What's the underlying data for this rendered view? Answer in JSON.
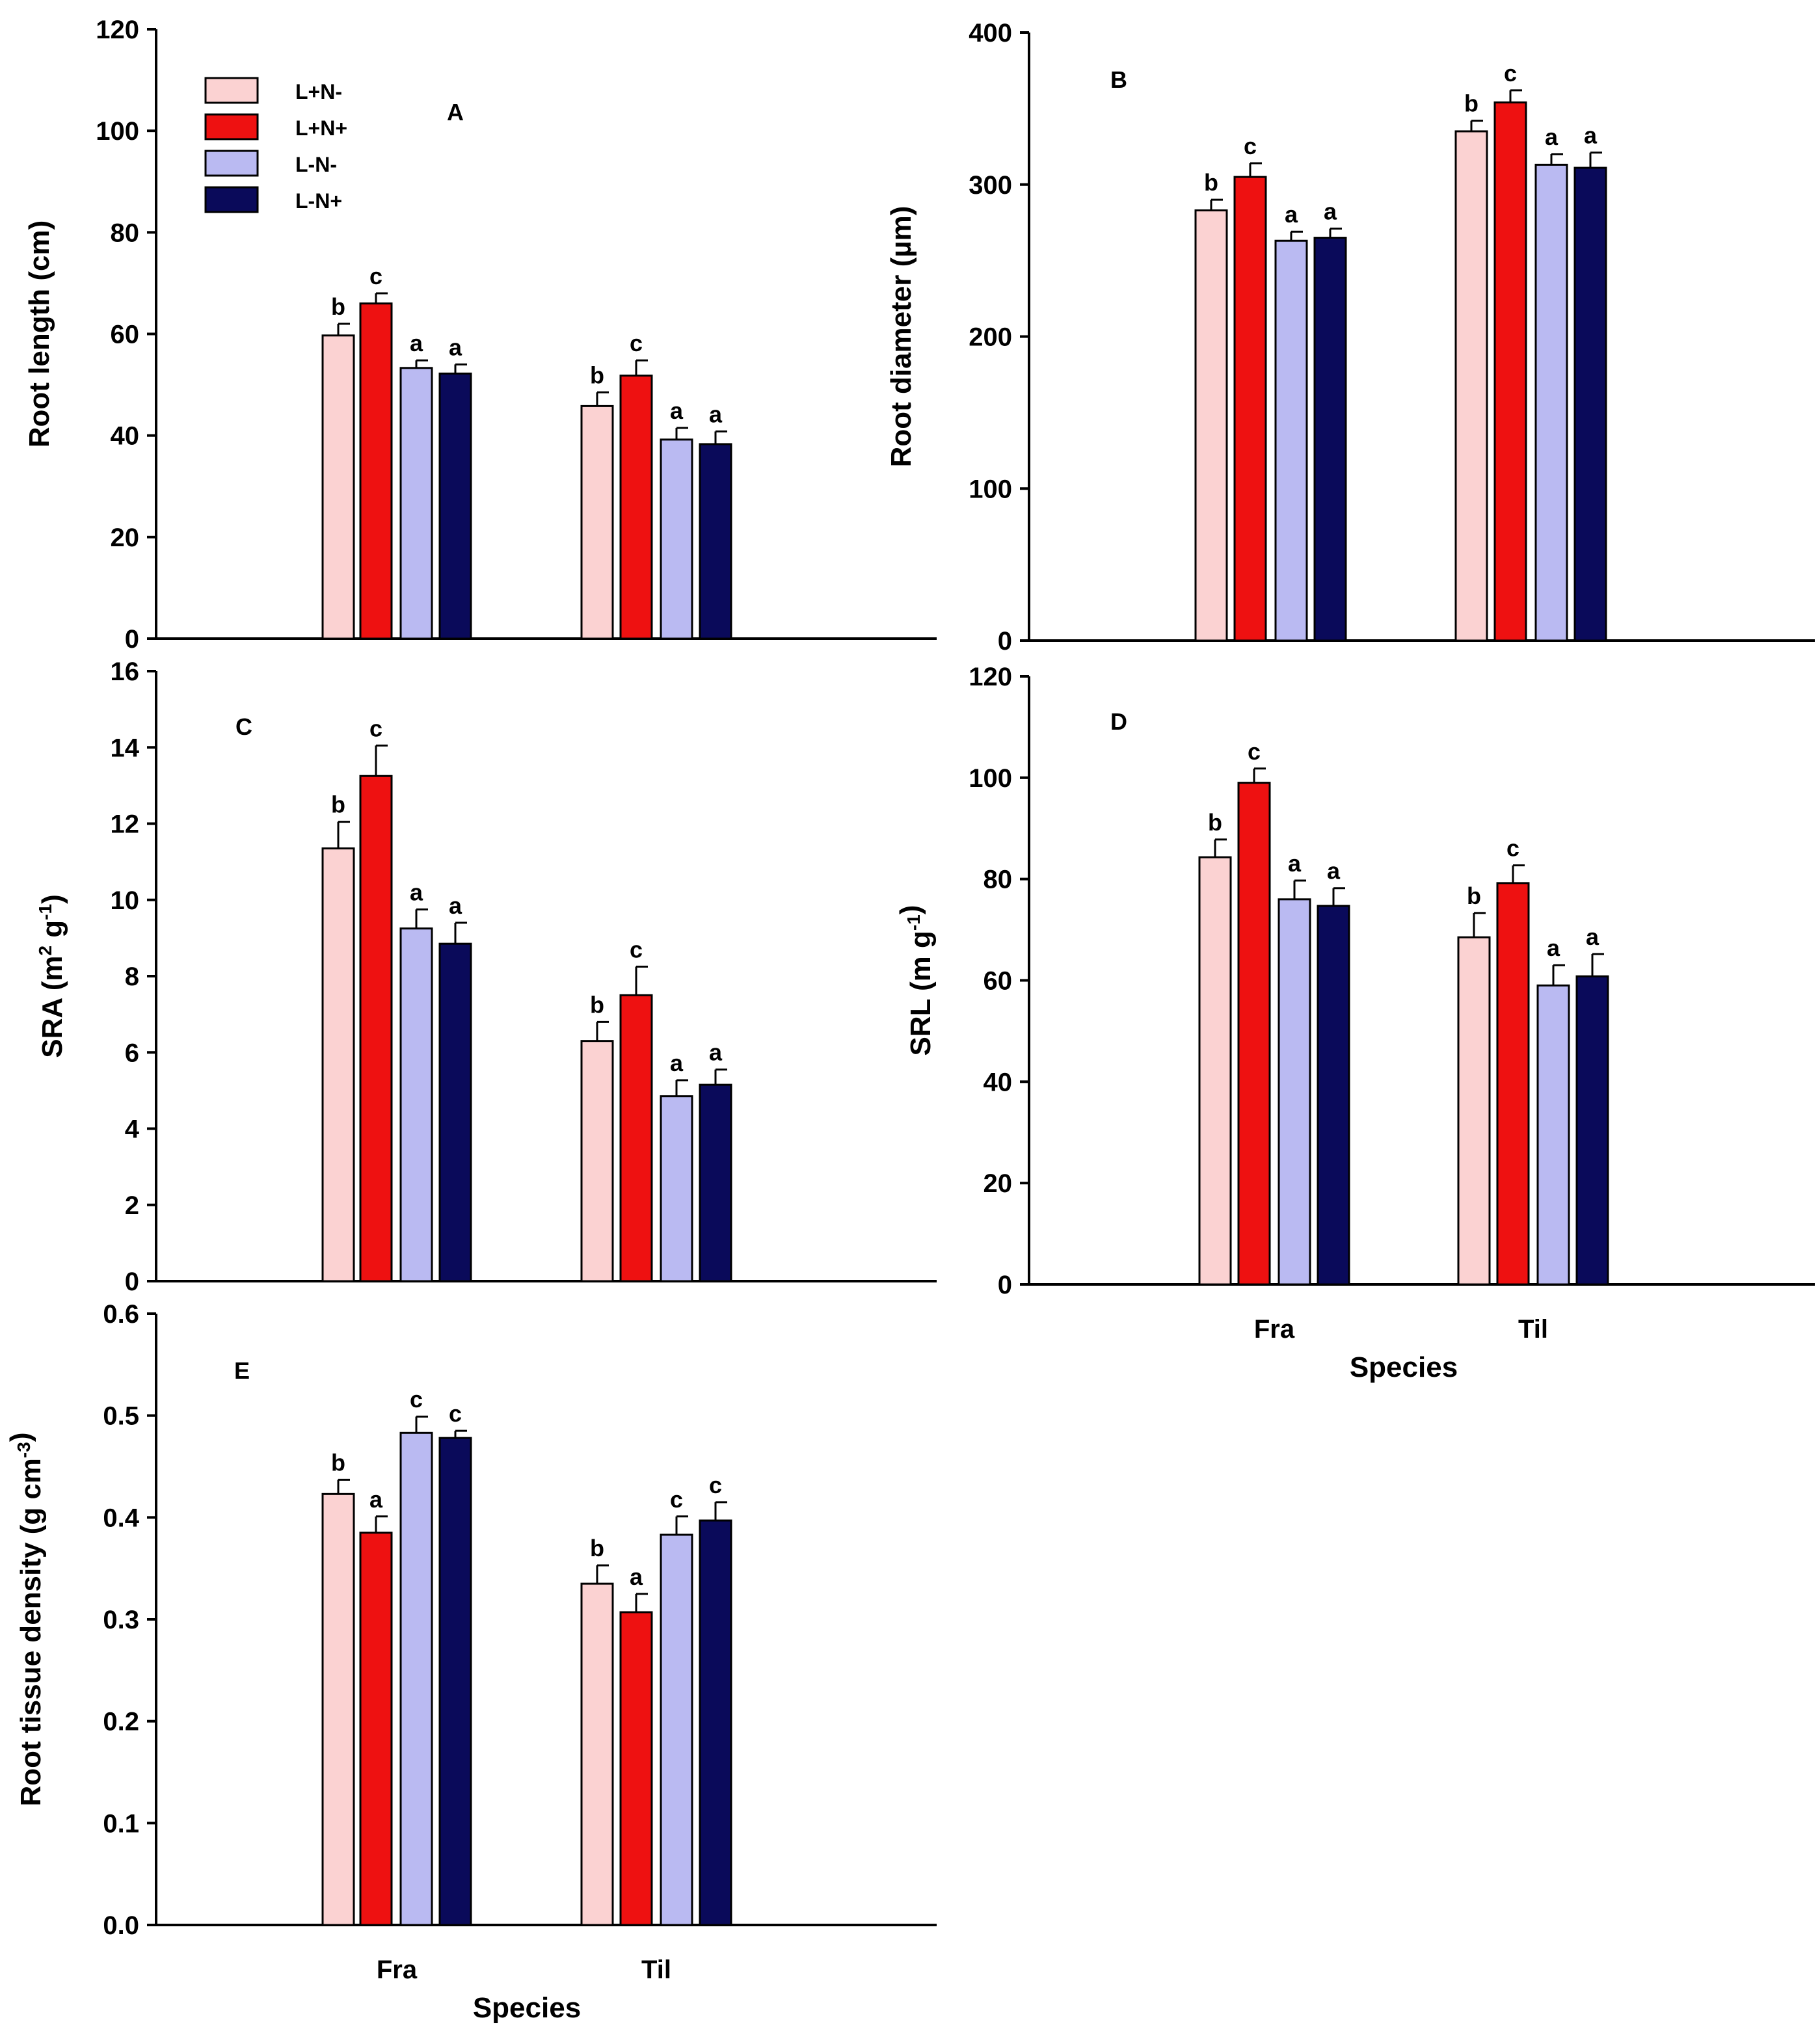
{
  "legend": [
    {
      "label": "L+N-",
      "color": "#fbd2d2"
    },
    {
      "label": "L+N+",
      "color": "#ee1111"
    },
    {
      "label": "L-N-",
      "color": "#babaf2"
    },
    {
      "label": "L-N+",
      "color": "#0a0a5a"
    }
  ],
  "chart_data": [
    {
      "id": "A",
      "type": "bar",
      "panel_label": "A",
      "categories": [
        "Fra",
        "Til"
      ],
      "series": [
        {
          "name": "L+N-",
          "values": [
            59.7,
            45.8
          ],
          "errors": [
            2.3,
            2.7
          ],
          "letters": [
            "b",
            "b"
          ]
        },
        {
          "name": "L+N+",
          "values": [
            66,
            51.8
          ],
          "errors": [
            2.0,
            3.0
          ],
          "letters": [
            "c",
            "c"
          ]
        },
        {
          "name": "L-N-",
          "values": [
            53.3,
            39.2
          ],
          "errors": [
            1.5,
            2.3
          ],
          "letters": [
            "a",
            "a"
          ]
        },
        {
          "name": "L-N+",
          "values": [
            52.2,
            38.3
          ],
          "errors": [
            1.8,
            2.5
          ],
          "letters": [
            "a",
            "a"
          ]
        }
      ],
      "ylabel": "Root length (cm)",
      "ylim": [
        0,
        120
      ],
      "yticks": [
        "0",
        "20",
        "40",
        "60",
        "80",
        "100",
        "120"
      ],
      "show_xticklabels": false,
      "xlabel": ""
    },
    {
      "id": "B",
      "type": "bar",
      "panel_label": "B",
      "categories": [
        "Fra",
        "Til"
      ],
      "series": [
        {
          "name": "L+N-",
          "values": [
            283,
            335
          ],
          "errors": [
            7,
            7
          ],
          "letters": [
            "b",
            "b"
          ]
        },
        {
          "name": "L+N+",
          "values": [
            305,
            354
          ],
          "errors": [
            9,
            8
          ],
          "letters": [
            "c",
            "c"
          ]
        },
        {
          "name": "L-N-",
          "values": [
            263,
            313
          ],
          "errors": [
            6,
            7
          ],
          "letters": [
            "a",
            "a"
          ]
        },
        {
          "name": "L-N+",
          "values": [
            265,
            311
          ],
          "errors": [
            6,
            10
          ],
          "letters": [
            "a",
            "a"
          ]
        }
      ],
      "ylabel": "Root diameter (µm)",
      "ylim": [
        0,
        400
      ],
      "yticks": [
        "0",
        "100",
        "200",
        "300",
        "400"
      ],
      "show_xticklabels": false,
      "xlabel": ""
    },
    {
      "id": "C",
      "type": "bar",
      "panel_label": "C",
      "categories": [
        "Fra",
        "Til"
      ],
      "series": [
        {
          "name": "L+N-",
          "values": [
            11.35,
            6.3
          ],
          "errors": [
            0.7,
            0.5
          ],
          "letters": [
            "b",
            "b"
          ]
        },
        {
          "name": "L+N+",
          "values": [
            13.25,
            7.5
          ],
          "errors": [
            0.8,
            0.75
          ],
          "letters": [
            "c",
            "c"
          ]
        },
        {
          "name": "L-N-",
          "values": [
            9.25,
            4.85
          ],
          "errors": [
            0.5,
            0.42
          ],
          "letters": [
            "a",
            "a"
          ]
        },
        {
          "name": "L-N+",
          "values": [
            8.85,
            5.15
          ],
          "errors": [
            0.55,
            0.4
          ],
          "letters": [
            "a",
            "a"
          ]
        }
      ],
      "ylabel": "SRA (m2 g-1)",
      "ylabel_parts": {
        "pre": "SRA (m",
        "sup1": "2",
        "mid": " g",
        "sup2": "-1",
        "post": ")"
      },
      "ylim": [
        0,
        16
      ],
      "yticks": [
        "0",
        "2",
        "4",
        "6",
        "8",
        "10",
        "12",
        "14",
        "16"
      ],
      "show_xticklabels": false,
      "xlabel": ""
    },
    {
      "id": "D",
      "type": "bar",
      "panel_label": "D",
      "categories": [
        "Fra",
        "Til"
      ],
      "series": [
        {
          "name": "L+N-",
          "values": [
            84.3,
            68.5
          ],
          "errors": [
            3.5,
            4.8
          ],
          "letters": [
            "b",
            "b"
          ]
        },
        {
          "name": "L+N+",
          "values": [
            99,
            79.2
          ],
          "errors": [
            2.8,
            3.5
          ],
          "letters": [
            "c",
            "c"
          ]
        },
        {
          "name": "L-N-",
          "values": [
            76,
            59
          ],
          "errors": [
            3.7,
            4.0
          ],
          "letters": [
            "a",
            "a"
          ]
        },
        {
          "name": "L-N+",
          "values": [
            74.7,
            60.8
          ],
          "errors": [
            3.5,
            4.4
          ],
          "letters": [
            "a",
            "a"
          ]
        }
      ],
      "ylabel": "SRL (m g-1)",
      "ylabel_parts": {
        "pre": "SRL (m g",
        "sup1": "-1",
        "mid": "",
        "sup2": "",
        "post": ")"
      },
      "ylim": [
        0,
        120
      ],
      "yticks": [
        "0",
        "20",
        "40",
        "60",
        "80",
        "100",
        "120"
      ],
      "show_xticklabels": true,
      "xlabel": "Species"
    },
    {
      "id": "E",
      "type": "bar",
      "panel_label": "E",
      "categories": [
        "Fra",
        "Til"
      ],
      "series": [
        {
          "name": "L+N-",
          "values": [
            0.423,
            0.335
          ],
          "errors": [
            0.014,
            0.018
          ],
          "letters": [
            "b",
            "b"
          ]
        },
        {
          "name": "L+N+",
          "values": [
            0.385,
            0.307
          ],
          "errors": [
            0.016,
            0.018
          ],
          "letters": [
            "a",
            "a"
          ]
        },
        {
          "name": "L-N-",
          "values": [
            0.483,
            0.383
          ],
          "errors": [
            0.016,
            0.018
          ],
          "letters": [
            "c",
            "c"
          ]
        },
        {
          "name": "L-N+",
          "values": [
            0.478,
            0.397
          ],
          "errors": [
            0.007,
            0.018
          ],
          "letters": [
            "c",
            "c"
          ]
        }
      ],
      "ylabel": "Root tissue density (g cm-3)",
      "ylabel_parts": {
        "pre": "Root tissue density (g cm",
        "sup1": "-3",
        "mid": "",
        "sup2": "",
        "post": ")"
      },
      "ylim": [
        0,
        0.6
      ],
      "yticks": [
        "0.0",
        "0.1",
        "0.2",
        "0.3",
        "0.4",
        "0.5",
        "0.6"
      ],
      "show_xticklabels": true,
      "xlabel": "Species"
    }
  ]
}
